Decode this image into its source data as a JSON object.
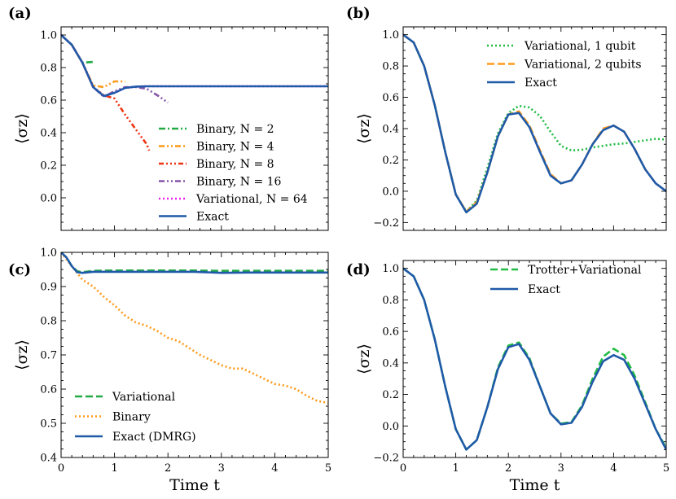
{
  "chart_data": [
    {
      "panel": "(a)",
      "type": "line",
      "xlabel": "",
      "ylabel": "⟨σz⟩",
      "xlim": [
        0,
        5
      ],
      "ylim": [
        -0.2,
        1.05
      ],
      "xticks": [],
      "yticks": [
        {
          "v": 1.0,
          "label": "1.0"
        },
        {
          "v": 0.8,
          "label": "0.8"
        },
        {
          "v": 0.6,
          "label": "0.6"
        },
        {
          "v": 0.4,
          "label": "0.4"
        },
        {
          "v": 0.2,
          "label": "0.2"
        },
        {
          "v": 0.0,
          "label": "0.0"
        }
      ],
      "grid": false,
      "legend": "lower-right",
      "series": [
        {
          "name": "Binary, N = 2",
          "color": "#22aa44",
          "dash": "dashdot",
          "x": [
            0,
            0.2,
            0.4,
            0.6
          ],
          "y": [
            1.0,
            0.94,
            0.83,
            0.835
          ]
        },
        {
          "name": "Binary, N = 4",
          "color": "#ff9a1a",
          "dash": "dashdotdot",
          "x": [
            0,
            0.2,
            0.4,
            0.6,
            0.8,
            1.0,
            1.2
          ],
          "y": [
            1.0,
            0.94,
            0.83,
            0.69,
            0.68,
            0.715,
            0.715
          ]
        },
        {
          "name": "Binary, N = 8",
          "color": "#ee3311",
          "dash": "dashdotdotdot",
          "x": [
            0,
            0.2,
            0.4,
            0.6,
            0.8,
            1.0,
            1.2,
            1.4,
            1.6,
            1.65
          ],
          "y": [
            1.0,
            0.94,
            0.83,
            0.68,
            0.63,
            0.61,
            0.51,
            0.42,
            0.33,
            0.29
          ]
        },
        {
          "name": "Binary, N = 16",
          "color": "#8855aa",
          "dash": "dashdotdot",
          "x": [
            0,
            0.2,
            0.4,
            0.6,
            0.8,
            1.0,
            1.2,
            1.4,
            1.6,
            1.8,
            2.0
          ],
          "y": [
            1.0,
            0.94,
            0.83,
            0.68,
            0.62,
            0.655,
            0.68,
            0.68,
            0.67,
            0.63,
            0.585
          ]
        },
        {
          "name": "Variational, N = 64",
          "color": "#ee22ee",
          "dash": "dotted",
          "x": [
            0,
            0.2,
            0.4,
            0.6,
            0.8,
            1.0,
            1.2,
            1.4,
            1.6,
            2.0,
            2.5,
            3.0,
            3.5,
            4.0,
            4.5,
            5.0
          ],
          "y": [
            1.0,
            0.94,
            0.83,
            0.68,
            0.625,
            0.645,
            0.675,
            0.683,
            0.685,
            0.685,
            0.685,
            0.685,
            0.685,
            0.685,
            0.685,
            0.685
          ]
        },
        {
          "name": "Exact",
          "color": "#1f5aa8",
          "dash": "solid",
          "x": [
            0,
            0.2,
            0.4,
            0.6,
            0.8,
            1.0,
            1.2,
            1.4,
            1.6,
            2.0,
            2.5,
            3.0,
            3.5,
            4.0,
            4.5,
            5.0
          ],
          "y": [
            1.0,
            0.94,
            0.83,
            0.68,
            0.625,
            0.645,
            0.675,
            0.683,
            0.685,
            0.685,
            0.685,
            0.685,
            0.685,
            0.685,
            0.685,
            0.685
          ]
        }
      ]
    },
    {
      "panel": "(b)",
      "type": "line",
      "xlabel": "",
      "ylabel": "⟨σz⟩",
      "xlim": [
        0,
        5
      ],
      "ylim": [
        -0.25,
        1.05
      ],
      "xticks": [],
      "yticks": [
        {
          "v": 1.0,
          "label": "1.0"
        },
        {
          "v": 0.8,
          "label": "0.8"
        },
        {
          "v": 0.6,
          "label": "0.6"
        },
        {
          "v": 0.4,
          "label": "0.4"
        },
        {
          "v": 0.2,
          "label": "0.2"
        },
        {
          "v": 0.0,
          "label": "0.0"
        },
        {
          "v": -0.2,
          "label": "−0.2"
        }
      ],
      "grid": false,
      "legend": "top-right",
      "series": [
        {
          "name": "Variational, 1 qubit",
          "color": "#22bb44",
          "dash": "dotted",
          "x": [
            0,
            0.2,
            0.4,
            0.6,
            0.8,
            1.0,
            1.2,
            1.4,
            1.6,
            1.8,
            2.0,
            2.2,
            2.4,
            2.6,
            2.8,
            3.0,
            3.2,
            3.4,
            3.6,
            3.8,
            4.0,
            4.2,
            4.4,
            4.6,
            4.8,
            5.0
          ],
          "y": [
            1.0,
            0.95,
            0.8,
            0.55,
            0.25,
            -0.02,
            -0.13,
            -0.06,
            0.15,
            0.37,
            0.5,
            0.545,
            0.535,
            0.48,
            0.38,
            0.29,
            0.26,
            0.265,
            0.28,
            0.29,
            0.3,
            0.305,
            0.315,
            0.325,
            0.335,
            0.33
          ]
        },
        {
          "name": "Variational, 2 qubits",
          "color": "#ff9a1a",
          "dash": "dashed",
          "x": [
            0,
            0.2,
            0.4,
            0.6,
            0.8,
            1.0,
            1.2,
            1.4,
            1.6,
            1.8,
            2.0,
            2.2,
            2.4,
            2.6,
            2.8,
            3.0,
            3.2,
            3.4,
            3.6,
            3.8,
            4.0,
            4.2,
            4.4,
            4.6,
            4.8,
            5.0
          ],
          "y": [
            1.0,
            0.95,
            0.8,
            0.55,
            0.25,
            -0.02,
            -0.13,
            -0.07,
            0.12,
            0.35,
            0.49,
            0.51,
            0.42,
            0.26,
            0.11,
            0.05,
            0.07,
            0.17,
            0.3,
            0.4,
            0.42,
            0.38,
            0.27,
            0.14,
            0.05,
            0.0
          ]
        },
        {
          "name": "Exact",
          "color": "#1f5aa8",
          "dash": "solid",
          "x": [
            0,
            0.2,
            0.4,
            0.6,
            0.8,
            1.0,
            1.2,
            1.4,
            1.6,
            1.8,
            2.0,
            2.2,
            2.4,
            2.6,
            2.8,
            3.0,
            3.2,
            3.4,
            3.6,
            3.8,
            4.0,
            4.2,
            4.4,
            4.6,
            4.8,
            5.0
          ],
          "y": [
            1.0,
            0.95,
            0.8,
            0.55,
            0.25,
            -0.02,
            -0.135,
            -0.08,
            0.12,
            0.35,
            0.49,
            0.5,
            0.41,
            0.25,
            0.1,
            0.05,
            0.07,
            0.17,
            0.3,
            0.39,
            0.42,
            0.38,
            0.27,
            0.14,
            0.05,
            0.0
          ]
        }
      ]
    },
    {
      "panel": "(c)",
      "type": "line",
      "xlabel": "Time t",
      "ylabel": "⟨σz⟩",
      "xlim": [
        0,
        5
      ],
      "ylim": [
        0.4,
        1.0
      ],
      "xticks": [
        {
          "v": 0,
          "label": "0"
        },
        {
          "v": 1,
          "label": "1"
        },
        {
          "v": 2,
          "label": "2"
        },
        {
          "v": 3,
          "label": "3"
        },
        {
          "v": 4,
          "label": "4"
        },
        {
          "v": 5,
          "label": "5"
        }
      ],
      "yticks": [
        {
          "v": 1.0,
          "label": "1.0"
        },
        {
          "v": 0.9,
          "label": "0.9"
        },
        {
          "v": 0.8,
          "label": "0.8"
        },
        {
          "v": 0.7,
          "label": "0.7"
        },
        {
          "v": 0.6,
          "label": "0.6"
        },
        {
          "v": 0.5,
          "label": "0.5"
        },
        {
          "v": 0.4,
          "label": "0.4"
        }
      ],
      "grid": false,
      "legend": "lower-left",
      "series": [
        {
          "name": "Variational",
          "color": "#22aa44",
          "dash": "dashed",
          "x": [
            0,
            0.1,
            0.2,
            0.3,
            0.4,
            0.6,
            1.0,
            1.5,
            2.0,
            2.5,
            3.0,
            3.5,
            4.0,
            4.5,
            5.0
          ],
          "y": [
            1.0,
            0.985,
            0.96,
            0.945,
            0.942,
            0.946,
            0.947,
            0.947,
            0.947,
            0.947,
            0.946,
            0.946,
            0.946,
            0.946,
            0.946
          ]
        },
        {
          "name": "Binary",
          "color": "#ff9a1a",
          "dash": "dotted",
          "x": [
            0,
            0.2,
            0.4,
            0.6,
            0.8,
            1.0,
            1.2,
            1.4,
            1.6,
            1.8,
            2.0,
            2.2,
            2.4,
            2.6,
            2.8,
            3.0,
            3.2,
            3.4,
            3.6,
            3.8,
            4.0,
            4.2,
            4.4,
            4.6,
            4.8,
            5.0
          ],
          "y": [
            1.0,
            0.96,
            0.92,
            0.9,
            0.87,
            0.845,
            0.815,
            0.795,
            0.785,
            0.77,
            0.75,
            0.74,
            0.72,
            0.7,
            0.685,
            0.67,
            0.66,
            0.66,
            0.645,
            0.63,
            0.615,
            0.61,
            0.6,
            0.58,
            0.565,
            0.56
          ]
        },
        {
          "name": "Exact (DMRG)",
          "color": "#1f5aa8",
          "dash": "solid",
          "x": [
            0,
            0.1,
            0.2,
            0.3,
            0.4,
            0.6,
            1.0,
            1.5,
            2.0,
            2.5,
            3.0,
            3.5,
            4.0,
            4.5,
            5.0
          ],
          "y": [
            1.0,
            0.985,
            0.96,
            0.942,
            0.94,
            0.943,
            0.943,
            0.943,
            0.943,
            0.943,
            0.94,
            0.941,
            0.941,
            0.941,
            0.941
          ]
        }
      ]
    },
    {
      "panel": "(d)",
      "type": "line",
      "xlabel": "Time t",
      "ylabel": "⟨σz⟩",
      "xlim": [
        0,
        5
      ],
      "ylim": [
        -0.2,
        1.05
      ],
      "xticks": [
        {
          "v": 0,
          "label": "0"
        },
        {
          "v": 1,
          "label": "1"
        },
        {
          "v": 2,
          "label": "2"
        },
        {
          "v": 3,
          "label": "3"
        },
        {
          "v": 4,
          "label": "4"
        },
        {
          "v": 5,
          "label": "5"
        }
      ],
      "yticks": [
        {
          "v": 1.0,
          "label": "1.0"
        },
        {
          "v": 0.8,
          "label": "0.8"
        },
        {
          "v": 0.6,
          "label": "0.6"
        },
        {
          "v": 0.4,
          "label": "0.4"
        },
        {
          "v": 0.2,
          "label": "0.2"
        },
        {
          "v": 0.0,
          "label": "0.0"
        },
        {
          "v": -0.2,
          "label": "−0.2"
        }
      ],
      "grid": false,
      "legend": "top-right",
      "series": [
        {
          "name": "Trotter+Variational",
          "color": "#22bb44",
          "dash": "dashed",
          "x": [
            0,
            0.2,
            0.4,
            0.6,
            0.8,
            1.0,
            1.2,
            1.4,
            1.6,
            1.8,
            2.0,
            2.2,
            2.4,
            2.6,
            2.8,
            3.0,
            3.2,
            3.4,
            3.6,
            3.8,
            4.0,
            4.2,
            4.4,
            4.6,
            4.8,
            5.0
          ],
          "y": [
            1.0,
            0.95,
            0.8,
            0.55,
            0.25,
            -0.02,
            -0.15,
            -0.09,
            0.12,
            0.37,
            0.51,
            0.53,
            0.43,
            0.25,
            0.08,
            0.015,
            0.025,
            0.13,
            0.3,
            0.44,
            0.49,
            0.45,
            0.32,
            0.15,
            -0.02,
            -0.14
          ]
        },
        {
          "name": "Exact",
          "color": "#1f5aa8",
          "dash": "solid",
          "x": [
            0,
            0.2,
            0.4,
            0.6,
            0.8,
            1.0,
            1.2,
            1.4,
            1.6,
            1.8,
            2.0,
            2.2,
            2.4,
            2.6,
            2.8,
            3.0,
            3.2,
            3.4,
            3.6,
            3.8,
            4.0,
            4.2,
            4.4,
            4.6,
            4.8,
            5.0
          ],
          "y": [
            1.0,
            0.95,
            0.8,
            0.55,
            0.25,
            -0.02,
            -0.15,
            -0.09,
            0.12,
            0.36,
            0.5,
            0.52,
            0.42,
            0.25,
            0.08,
            0.01,
            0.02,
            0.12,
            0.28,
            0.41,
            0.45,
            0.42,
            0.3,
            0.14,
            -0.02,
            -0.15
          ]
        }
      ]
    }
  ]
}
